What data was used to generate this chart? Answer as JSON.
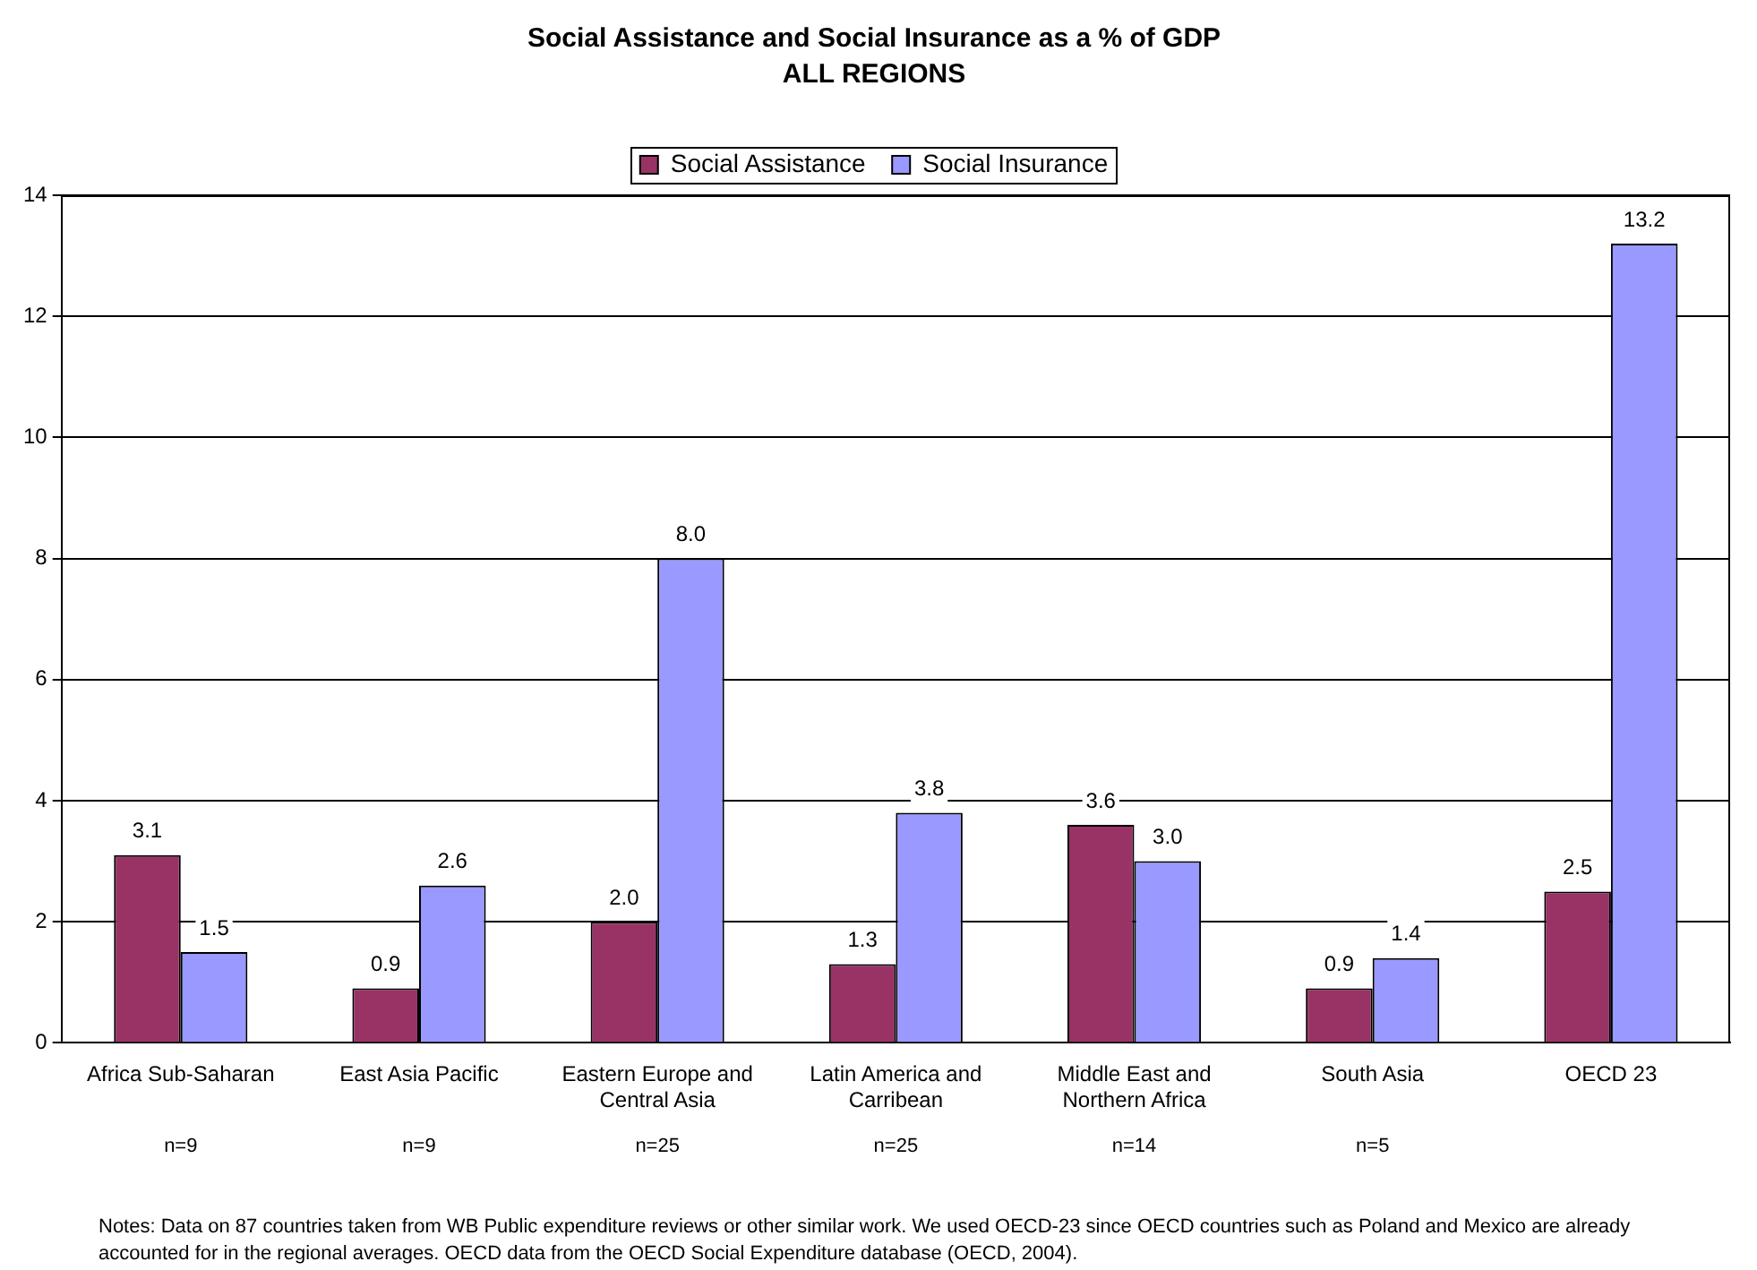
{
  "chart_data": {
    "type": "bar",
    "title": "Social Assistance and Social Insurance as a % of GDP",
    "subtitle": "ALL REGIONS",
    "categories": [
      "Africa Sub-Saharan",
      "East Asia Pacific",
      "Eastern Europe and Central Asia",
      "Latin America and Carribean",
      "Middle East and Northern Africa",
      "South Asia",
      "OECD 23"
    ],
    "series": [
      {
        "name": "Social Assistance",
        "color": "#993366",
        "values": [
          3.1,
          0.9,
          2.0,
          1.3,
          3.6,
          0.9,
          2.5
        ],
        "value_labels": [
          "3.1",
          "0.9",
          "2.0",
          "1.3",
          "3.6",
          "0.9",
          "2.5"
        ]
      },
      {
        "name": "Social Insurance",
        "color": "#9999ff",
        "values": [
          1.5,
          2.6,
          8.0,
          3.8,
          3.0,
          1.4,
          13.2
        ],
        "value_labels": [
          "1.5",
          "2.6",
          "8.0",
          "3.8",
          "3.0",
          "1.4",
          "13.2"
        ]
      }
    ],
    "ylim": [
      0,
      14
    ],
    "yticks": [
      0,
      2,
      4,
      6,
      8,
      10,
      12,
      14
    ],
    "grid": "y",
    "legend": "top",
    "annotations": [
      "n=9",
      "n=9",
      "n=25",
      "n=25",
      "n=14",
      "n=5",
      "Notes: Data on 87 countries taken from WB Public expenditure reviews or other similar work. We used OECD-23 since OECD countries such as Poland and Mexico are already accounted for in the regional averages. OECD data from the OECD Social Expenditure database (OECD, 2004)."
    ]
  }
}
